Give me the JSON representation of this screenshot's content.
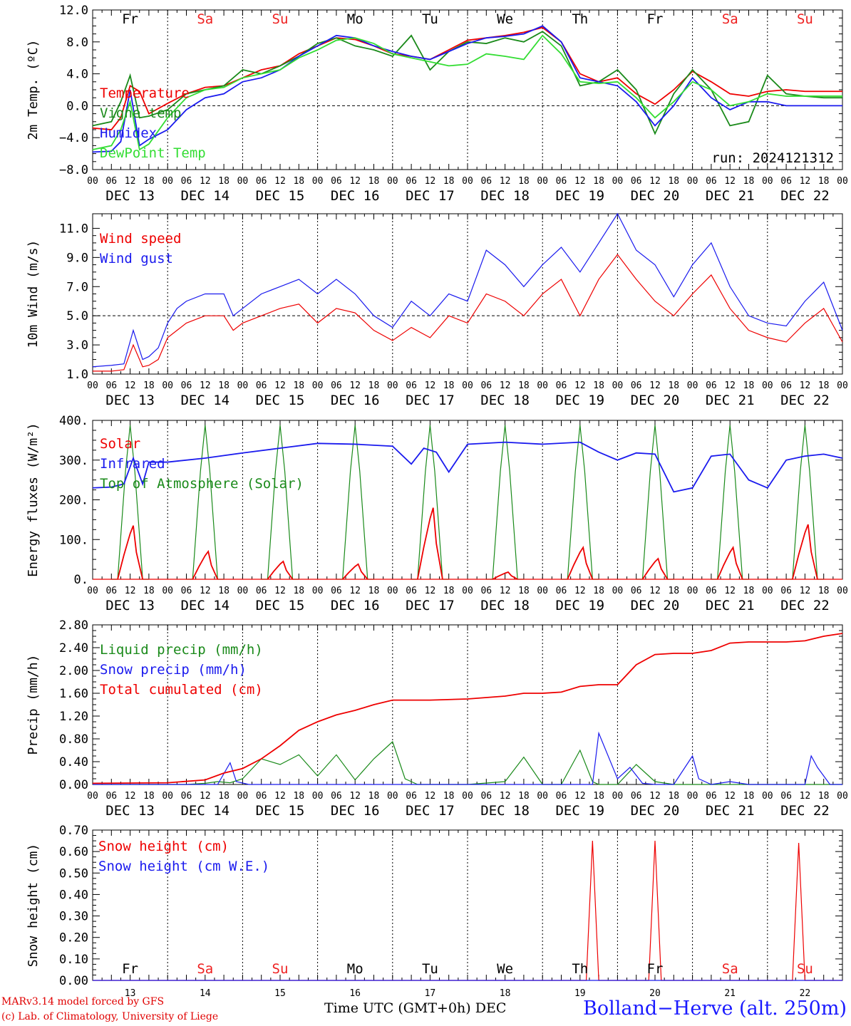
{
  "days": {
    "weekday_names": [
      "Fr",
      "Sa",
      "Su",
      "Mo",
      "Tu",
      "We",
      "Th",
      "Fr",
      "Sa",
      "Su"
    ],
    "weekend_flags": [
      false,
      true,
      true,
      false,
      false,
      false,
      false,
      false,
      true,
      true
    ],
    "date_labels": [
      "DEC 13",
      "DEC 14",
      "DEC 15",
      "DEC 16",
      "DEC 17",
      "DEC 18",
      "DEC 19",
      "DEC 20",
      "DEC 21",
      "DEC 22"
    ],
    "day_numbers": [
      "13",
      "14",
      "15",
      "16",
      "17",
      "18",
      "19",
      "20",
      "21",
      "22"
    ],
    "hour_ticks": [
      "00",
      "06",
      "12",
      "18"
    ],
    "final_hour": "00"
  },
  "colors": {
    "red": "#ee0000",
    "green": "#1a8a1a",
    "blue": "#1a1aee",
    "lightgreen": "#33dd33",
    "weekend": "#ee2020"
  },
  "run_label": "run: 2024121312",
  "footer": {
    "model": "MARv3.14 model forced by GFS",
    "credit": "(c) Lab. of Climatology, University of Liege",
    "xlabel": "Time UTC (GMT+0h) DEC",
    "station": "Bolland−Herve (alt. 250m)"
  },
  "chart_data": [
    {
      "type": "line",
      "id": "temp",
      "ylabel": "2m Temp. (ºC)",
      "ylim": [
        -8,
        12
      ],
      "yticks": [
        -8,
        -4,
        0,
        4,
        8,
        12
      ],
      "ytick_labels": [
        "−8.0",
        "−4.0",
        "0.0",
        "4.0",
        "8.0",
        "12.0"
      ],
      "ref_line": 0,
      "x_unit": "hours since DEC 13 00 UTC",
      "series": [
        {
          "name": "Temperature",
          "color": "red",
          "x": [
            0,
            6,
            9,
            12,
            15,
            18,
            24,
            30,
            36,
            42,
            48,
            54,
            60,
            66,
            72,
            78,
            84,
            90,
            96,
            102,
            108,
            114,
            120,
            126,
            132,
            138,
            144,
            150,
            156,
            162,
            168,
            174,
            180,
            186,
            192,
            198,
            204,
            210,
            216,
            222,
            228,
            234,
            240
          ],
          "values": [
            -2.8,
            -3.0,
            -1.5,
            2.5,
            1.8,
            -1.0,
            0.3,
            1.5,
            2.3,
            2.5,
            3.5,
            4.5,
            5.0,
            6.5,
            7.5,
            8.5,
            8.3,
            7.5,
            6.5,
            6.2,
            5.8,
            7.0,
            8.2,
            8.5,
            8.8,
            9.2,
            9.8,
            8.0,
            4.0,
            3.0,
            3.5,
            1.5,
            0.2,
            2.0,
            4.3,
            3.0,
            1.5,
            1.2,
            1.8,
            2.0,
            1.8,
            1.8,
            1.8
          ]
        },
        {
          "name": "Vigne temp",
          "color": "green",
          "x": [
            0,
            6,
            9,
            12,
            15,
            18,
            24,
            30,
            36,
            42,
            48,
            54,
            60,
            66,
            72,
            78,
            84,
            90,
            96,
            102,
            108,
            114,
            120,
            126,
            132,
            138,
            144,
            150,
            156,
            162,
            168,
            174,
            180,
            186,
            192,
            198,
            204,
            210,
            216,
            222,
            228,
            234,
            240
          ],
          "values": [
            -2.5,
            -2.0,
            0.5,
            3.8,
            -1.5,
            -1.3,
            -0.5,
            1.5,
            2.0,
            2.5,
            4.5,
            4.0,
            5.0,
            6.2,
            7.8,
            8.5,
            7.5,
            7.0,
            6.2,
            8.8,
            4.5,
            6.8,
            8.0,
            7.8,
            8.5,
            8.0,
            9.3,
            7.5,
            2.5,
            3.0,
            4.5,
            2.0,
            -3.5,
            1.5,
            4.5,
            2.0,
            -2.5,
            -2.0,
            3.8,
            1.5,
            1.2,
            1.0,
            1.0
          ]
        },
        {
          "name": "Humidex",
          "color": "blue",
          "x": [
            0,
            6,
            9,
            12,
            15,
            18,
            24,
            30,
            36,
            42,
            48,
            54,
            60,
            66,
            72,
            78,
            84,
            90,
            96,
            102,
            108,
            114,
            120,
            126,
            132,
            138,
            144,
            150,
            156,
            162,
            168,
            174,
            180,
            186,
            192,
            198,
            204,
            210,
            216,
            222,
            228,
            234,
            240
          ],
          "values": [
            -5.8,
            -5.7,
            -4.5,
            2.0,
            -5.0,
            -4.2,
            -3.0,
            -0.5,
            1.0,
            1.5,
            3.0,
            3.5,
            4.5,
            6.2,
            7.5,
            8.8,
            8.5,
            7.5,
            6.8,
            6.2,
            5.8,
            6.8,
            7.8,
            8.5,
            8.7,
            9.0,
            10.0,
            8.0,
            3.5,
            3.0,
            2.5,
            0.5,
            -2.5,
            0.0,
            3.5,
            1.0,
            -0.5,
            0.5,
            0.5,
            0.0,
            0.0,
            0.0,
            0.0
          ]
        },
        {
          "name": "DewPoint Temp",
          "color": "lightgreen",
          "x": [
            0,
            6,
            9,
            12,
            15,
            18,
            24,
            30,
            36,
            42,
            48,
            54,
            60,
            66,
            72,
            78,
            84,
            90,
            96,
            102,
            108,
            114,
            120,
            126,
            132,
            138,
            144,
            150,
            156,
            162,
            168,
            174,
            180,
            186,
            192,
            198,
            204,
            210,
            216,
            222,
            228,
            234,
            240
          ],
          "values": [
            -5.5,
            -5.0,
            -3.0,
            0.5,
            -5.5,
            -4.8,
            -1.5,
            1.0,
            2.0,
            2.3,
            3.5,
            4.0,
            4.5,
            6.0,
            7.0,
            8.2,
            8.5,
            7.8,
            6.5,
            6.0,
            5.5,
            5.0,
            5.2,
            6.5,
            6.2,
            5.8,
            8.8,
            6.5,
            3.0,
            2.8,
            3.0,
            1.0,
            -1.5,
            0.5,
            3.0,
            2.0,
            0.0,
            0.5,
            1.5,
            1.2,
            1.2,
            1.2,
            1.2
          ]
        }
      ]
    },
    {
      "type": "line",
      "id": "wind",
      "ylabel": "10m Wind (m/s)",
      "ylim": [
        1,
        12
      ],
      "yticks": [
        1,
        3,
        5,
        7,
        9,
        11
      ],
      "ytick_labels": [
        "1.0",
        "3.0",
        "5.0",
        "7.0",
        "9.0",
        "11.0"
      ],
      "ref_line": 5,
      "x_unit": "hours since DEC 13 00 UTC",
      "series": [
        {
          "name": "Wind speed",
          "color": "red",
          "x": [
            0,
            6,
            10,
            13,
            16,
            18,
            21,
            24,
            27,
            30,
            36,
            42,
            45,
            48,
            54,
            60,
            66,
            72,
            78,
            84,
            90,
            96,
            102,
            108,
            114,
            120,
            126,
            132,
            138,
            144,
            150,
            156,
            162,
            168,
            174,
            180,
            186,
            192,
            198,
            204,
            210,
            216,
            222,
            228,
            234,
            240
          ],
          "values": [
            1.2,
            1.2,
            1.3,
            3.0,
            1.5,
            1.6,
            2.0,
            3.5,
            4.0,
            4.5,
            5.0,
            5.0,
            4.0,
            4.5,
            5.0,
            5.5,
            5.8,
            4.5,
            5.5,
            5.2,
            4.0,
            3.3,
            4.2,
            3.5,
            5.0,
            4.5,
            6.5,
            6.0,
            5.0,
            6.5,
            7.5,
            5.0,
            7.5,
            9.2,
            7.5,
            6.0,
            5.0,
            6.5,
            7.8,
            5.5,
            4.0,
            3.5,
            3.2,
            4.5,
            5.5,
            3.2
          ]
        },
        {
          "name": "Wind gust",
          "color": "blue",
          "x": [
            0,
            6,
            10,
            13,
            16,
            18,
            21,
            24,
            27,
            30,
            36,
            42,
            45,
            48,
            54,
            60,
            66,
            72,
            78,
            84,
            90,
            96,
            102,
            108,
            114,
            120,
            126,
            132,
            138,
            144,
            150,
            156,
            162,
            168,
            174,
            180,
            186,
            192,
            198,
            204,
            210,
            216,
            222,
            228,
            234,
            240
          ],
          "values": [
            1.5,
            1.6,
            1.7,
            4.0,
            2.0,
            2.2,
            2.8,
            4.5,
            5.5,
            6.0,
            6.5,
            6.5,
            5.0,
            5.5,
            6.5,
            7.0,
            7.5,
            6.5,
            7.5,
            6.5,
            5.0,
            4.2,
            6.0,
            5.0,
            6.5,
            6.0,
            9.5,
            8.5,
            7.0,
            8.5,
            9.7,
            8.0,
            10.0,
            12.0,
            9.5,
            8.5,
            6.3,
            8.5,
            10.0,
            7.0,
            5.0,
            4.5,
            4.3,
            6.0,
            7.3,
            4.0
          ]
        }
      ]
    },
    {
      "type": "line",
      "id": "energy",
      "ylabel": "Energy fluxes (W/m²)",
      "ylim": [
        0,
        400
      ],
      "yticks": [
        0,
        100,
        200,
        300,
        400
      ],
      "ytick_labels": [
        "0.",
        "100.",
        "200.",
        "300.",
        "400."
      ],
      "x_unit": "hours since DEC 13 00 UTC",
      "series": [
        {
          "name": "Solar",
          "color": "red",
          "peaks": [
            135,
            70,
            45,
            38,
            180,
            18,
            80,
            52,
            80,
            138
          ]
        },
        {
          "name": "Infrared",
          "color": "blue",
          "x": [
            0,
            6,
            10,
            13,
            16,
            18,
            24,
            36,
            48,
            60,
            72,
            84,
            96,
            102,
            106,
            110,
            114,
            120,
            132,
            144,
            156,
            162,
            168,
            174,
            180,
            186,
            192,
            198,
            204,
            210,
            216,
            222,
            228,
            234,
            240
          ],
          "values": [
            230,
            232,
            240,
            305,
            240,
            295,
            295,
            305,
            318,
            330,
            342,
            340,
            335,
            290,
            330,
            320,
            270,
            340,
            345,
            340,
            345,
            320,
            300,
            318,
            315,
            220,
            230,
            310,
            315,
            250,
            230,
            300,
            310,
            315,
            305
          ]
        },
        {
          "name": "Top of Atmosphere (Solar)",
          "color": "green",
          "peak": 388
        }
      ]
    },
    {
      "type": "line",
      "id": "precip",
      "ylabel": "Precip (mm/h)",
      "ylim": [
        0,
        2.8
      ],
      "yticks": [
        0,
        0.4,
        0.8,
        1.2,
        1.6,
        2.0,
        2.4,
        2.8
      ],
      "ytick_labels": [
        "0.00",
        "0.40",
        "0.80",
        "1.20",
        "1.60",
        "2.00",
        "2.40",
        "2.80"
      ],
      "x_unit": "hours since DEC 13 00 UTC",
      "series": [
        {
          "name": "Liquid precip (mm/h)",
          "color": "green",
          "x": [
            0,
            30,
            36,
            40,
            44,
            48,
            54,
            60,
            66,
            72,
            78,
            84,
            90,
            96,
            100,
            102,
            104,
            110,
            120,
            132,
            138,
            144,
            150,
            156,
            160,
            162,
            168,
            174,
            180,
            186,
            192,
            198,
            204,
            210,
            216,
            222,
            228,
            234,
            240
          ],
          "values": [
            0,
            0,
            0.02,
            0.05,
            0.03,
            0.1,
            0.45,
            0.35,
            0.52,
            0.15,
            0.52,
            0.08,
            0.45,
            0.75,
            0.1,
            0.05,
            0,
            0,
            0,
            0.05,
            0.48,
            0,
            0,
            0.6,
            0.05,
            0,
            0,
            0.35,
            0.05,
            0,
            0,
            0,
            0,
            0,
            0,
            0,
            0,
            0,
            0
          ]
        },
        {
          "name": "Snow precip (mm/h)",
          "color": "blue",
          "x": [
            0,
            40,
            44,
            46,
            50,
            150,
            156,
            160,
            162,
            168,
            172,
            176,
            180,
            186,
            192,
            194,
            198,
            204,
            210,
            216,
            222,
            228,
            230,
            232,
            236,
            240
          ],
          "values": [
            0,
            0,
            0.38,
            0.05,
            0,
            0,
            0,
            0,
            0.9,
            0.1,
            0.3,
            0.02,
            0,
            0,
            0.5,
            0.1,
            0,
            0.05,
            0,
            0,
            0,
            0,
            0.5,
            0.3,
            0,
            0
          ]
        },
        {
          "name": "Total cumulated (cm)",
          "color": "red",
          "x": [
            0,
            24,
            36,
            42,
            48,
            54,
            60,
            66,
            72,
            78,
            84,
            90,
            96,
            102,
            108,
            120,
            132,
            138,
            144,
            150,
            156,
            162,
            168,
            174,
            180,
            186,
            192,
            198,
            204,
            210,
            216,
            222,
            228,
            234,
            240
          ],
          "values": [
            0.02,
            0.03,
            0.08,
            0.2,
            0.28,
            0.45,
            0.68,
            0.95,
            1.1,
            1.22,
            1.3,
            1.4,
            1.48,
            1.48,
            1.48,
            1.5,
            1.55,
            1.6,
            1.6,
            1.62,
            1.72,
            1.75,
            1.75,
            2.1,
            2.28,
            2.3,
            2.3,
            2.35,
            2.48,
            2.5,
            2.5,
            2.5,
            2.52,
            2.6,
            2.65
          ]
        }
      ]
    },
    {
      "type": "line",
      "id": "snow",
      "ylabel": "Snow height (cm)",
      "ylim": [
        0,
        0.7
      ],
      "yticks": [
        0,
        0.1,
        0.2,
        0.3,
        0.4,
        0.5,
        0.6,
        0.7
      ],
      "ytick_labels": [
        "0.00",
        "0.10",
        "0.20",
        "0.30",
        "0.40",
        "0.50",
        "0.60",
        "0.70"
      ],
      "x_unit": "hours since DEC 13 00 UTC",
      "series": [
        {
          "name": "Snow height (cm)",
          "color": "red",
          "x": [
            0,
            158,
            160,
            162,
            178,
            180,
            182,
            224,
            226,
            228,
            240
          ],
          "values": [
            0,
            0,
            0.65,
            0,
            0,
            0.65,
            0,
            0,
            0.64,
            0,
            0
          ]
        },
        {
          "name": "Snow height (cm W.E.)",
          "color": "blue",
          "x": [
            0,
            240
          ],
          "values": [
            0,
            0
          ]
        }
      ]
    }
  ]
}
